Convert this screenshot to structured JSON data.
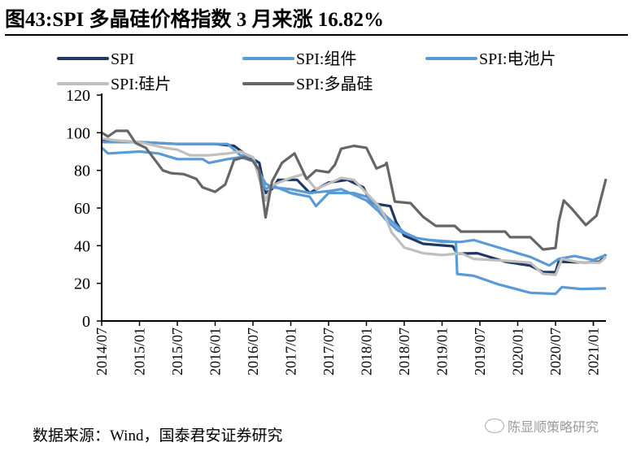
{
  "title": "图43:SPI 多晶硅价格指数 3 月来涨 16.82%",
  "source": "数据来源：Wind，国泰君安证券研究",
  "watermark": "陈显顺策略研究",
  "chart_data": {
    "type": "line",
    "title": "图43:SPI 多晶硅价格指数 3 月来涨 16.82%",
    "xlabel": "",
    "ylabel": "",
    "ylim": [
      0,
      120
    ],
    "yticks": [
      0,
      20,
      40,
      60,
      80,
      100,
      120
    ],
    "x_unit": "months since 2014/07",
    "xlim": [
      0,
      80
    ],
    "xtick_labels": [
      "2014/07",
      "2015/01",
      "2015/07",
      "2016/01",
      "2016/07",
      "2017/01",
      "2017/07",
      "2018/01",
      "2018/07",
      "2019/01",
      "2019/07",
      "2020/01",
      "2020/07",
      "2021/01"
    ],
    "legend_position": "top",
    "series": [
      {
        "name": "SPI",
        "color": "#1f3864",
        "points": [
          [
            0,
            96
          ],
          [
            6,
            95
          ],
          [
            12,
            94
          ],
          [
            18,
            94
          ],
          [
            21,
            93
          ],
          [
            23,
            88
          ],
          [
            25,
            84
          ],
          [
            26,
            68
          ],
          [
            27,
            70
          ],
          [
            28,
            75
          ],
          [
            31,
            75
          ],
          [
            33,
            68
          ],
          [
            36,
            73.5
          ],
          [
            39,
            75
          ],
          [
            41.5,
            71
          ],
          [
            42.8,
            62.6
          ],
          [
            45.8,
            61
          ],
          [
            46.7,
            52.6
          ],
          [
            48,
            45.3
          ],
          [
            51,
            41
          ],
          [
            55.7,
            39.7
          ],
          [
            56.4,
            35.8
          ],
          [
            59.6,
            36
          ],
          [
            64,
            31.5
          ],
          [
            68,
            29.4
          ],
          [
            70,
            26
          ],
          [
            72,
            26
          ],
          [
            72.5,
            31.5
          ],
          [
            76.8,
            31
          ],
          [
            79,
            31.5
          ],
          [
            80,
            35.4
          ]
        ]
      },
      {
        "name": "SPI:组件",
        "color": "#5b9bd5",
        "points": [
          [
            0,
            92
          ],
          [
            1,
            89
          ],
          [
            6,
            90
          ],
          [
            9,
            89
          ],
          [
            12,
            86
          ],
          [
            16,
            86
          ],
          [
            17,
            84
          ],
          [
            20,
            86
          ],
          [
            22,
            87
          ],
          [
            24,
            85
          ],
          [
            26,
            73
          ],
          [
            27,
            71
          ],
          [
            30,
            70
          ],
          [
            33,
            68
          ],
          [
            36,
            69
          ],
          [
            38,
            70
          ],
          [
            40,
            67
          ],
          [
            42,
            64
          ],
          [
            44,
            58
          ],
          [
            45,
            54
          ],
          [
            47,
            48
          ],
          [
            50,
            44
          ],
          [
            54,
            42
          ],
          [
            57,
            42
          ],
          [
            59,
            43
          ],
          [
            64,
            38
          ],
          [
            68,
            34
          ],
          [
            71,
            29.5
          ],
          [
            72.5,
            33
          ],
          [
            75,
            34.5
          ],
          [
            78,
            32.4
          ],
          [
            80,
            35
          ]
        ]
      },
      {
        "name": "SPI:电池片",
        "color": "#5b9bd5",
        "points": [
          [
            0,
            95
          ],
          [
            6,
            95
          ],
          [
            12,
            94
          ],
          [
            18,
            94
          ],
          [
            20,
            94
          ],
          [
            22,
            88
          ],
          [
            24,
            87
          ],
          [
            26,
            70
          ],
          [
            27,
            72
          ],
          [
            30,
            68
          ],
          [
            33,
            66
          ],
          [
            34,
            61
          ],
          [
            36,
            68
          ],
          [
            40,
            68
          ],
          [
            42,
            66
          ],
          [
            44,
            60
          ],
          [
            45,
            56
          ],
          [
            46,
            53
          ],
          [
            48,
            47
          ],
          [
            50,
            44
          ],
          [
            52,
            43
          ],
          [
            56.2,
            42
          ],
          [
            56.4,
            25
          ],
          [
            59,
            24
          ],
          [
            63,
            19.4
          ],
          [
            68,
            15
          ],
          [
            72,
            14.4
          ],
          [
            73,
            18
          ],
          [
            76,
            17
          ],
          [
            80,
            17.3
          ]
        ]
      },
      {
        "name": "SPI:硅片",
        "color": "#bfbfbf",
        "points": [
          [
            0,
            97
          ],
          [
            2,
            96
          ],
          [
            6,
            95
          ],
          [
            10,
            92
          ],
          [
            12,
            91
          ],
          [
            14,
            88
          ],
          [
            17,
            88
          ],
          [
            20,
            89
          ],
          [
            22,
            90
          ],
          [
            24,
            87
          ],
          [
            26,
            64
          ],
          [
            27,
            72
          ],
          [
            30,
            76
          ],
          [
            32,
            78
          ],
          [
            34,
            70
          ],
          [
            36,
            73
          ],
          [
            38,
            76
          ],
          [
            40,
            75
          ],
          [
            42,
            68
          ],
          [
            44,
            61
          ],
          [
            45,
            55
          ],
          [
            46,
            47
          ],
          [
            47,
            43
          ],
          [
            48,
            39
          ],
          [
            51,
            36
          ],
          [
            54,
            35
          ],
          [
            57,
            36
          ],
          [
            59,
            33
          ],
          [
            64,
            32
          ],
          [
            68,
            31
          ],
          [
            70,
            25
          ],
          [
            72,
            24.5
          ],
          [
            73,
            33
          ],
          [
            76,
            31
          ],
          [
            79,
            31
          ],
          [
            80,
            34
          ]
        ]
      },
      {
        "name": "SPI:多晶硅",
        "color": "#666666",
        "points": [
          [
            0,
            100
          ],
          [
            1,
            98
          ],
          [
            2.3,
            101
          ],
          [
            4.1,
            101
          ],
          [
            5.4,
            94.5
          ],
          [
            7,
            92
          ],
          [
            9.7,
            80
          ],
          [
            11,
            78.5
          ],
          [
            13,
            78
          ],
          [
            15,
            75.5
          ],
          [
            16,
            71
          ],
          [
            18,
            68.6
          ],
          [
            19.6,
            72.5
          ],
          [
            21,
            85.5
          ],
          [
            22.6,
            87
          ],
          [
            24,
            85
          ],
          [
            25,
            80
          ],
          [
            26,
            55
          ],
          [
            27,
            74
          ],
          [
            28.6,
            84
          ],
          [
            30.6,
            89
          ],
          [
            32.5,
            75.5
          ],
          [
            34,
            80
          ],
          [
            36,
            79
          ],
          [
            37,
            83
          ],
          [
            38,
            91.5
          ],
          [
            40,
            93
          ],
          [
            42,
            92
          ],
          [
            43.6,
            81
          ],
          [
            45,
            83
          ],
          [
            45.2,
            84
          ],
          [
            46.5,
            63.4
          ],
          [
            49,
            62.6
          ],
          [
            51,
            55.3
          ],
          [
            53,
            50.5
          ],
          [
            56,
            50.5
          ],
          [
            57,
            47.5
          ],
          [
            64,
            47.5
          ],
          [
            64.8,
            44.5
          ],
          [
            68,
            44.5
          ],
          [
            70,
            38
          ],
          [
            72,
            38.8
          ],
          [
            72.5,
            52.6
          ],
          [
            73.3,
            64
          ],
          [
            74.6,
            59.6
          ],
          [
            76.8,
            51
          ],
          [
            78.5,
            56
          ],
          [
            80,
            75.5
          ]
        ]
      }
    ]
  }
}
